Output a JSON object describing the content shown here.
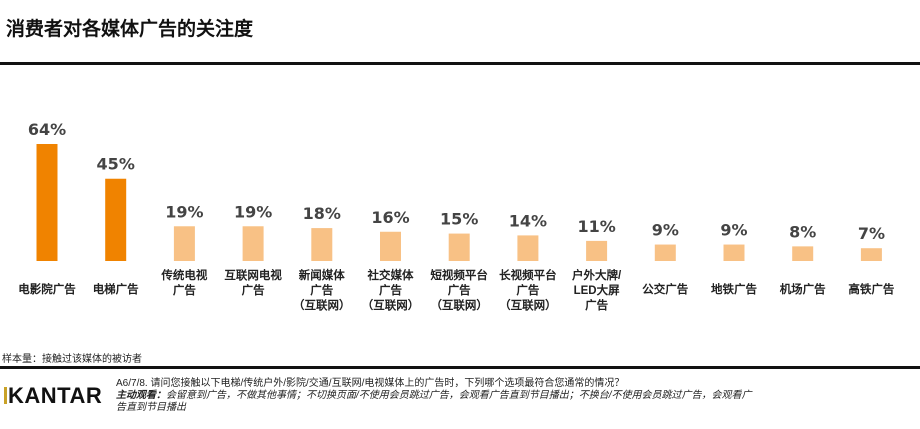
{
  "title": "消费者对各媒体广告的关注度",
  "chart_data": {
    "type": "bar",
    "categories": [
      [
        "电影院广告"
      ],
      [
        "电梯广告"
      ],
      [
        "传统电视",
        "广告"
      ],
      [
        "互联网电视",
        "广告"
      ],
      [
        "新闻媒体",
        "广告",
        "（互联网）"
      ],
      [
        "社交媒体",
        "广告",
        "（互联网）"
      ],
      [
        "短视频平台",
        "广告",
        "（互联网）"
      ],
      [
        "长视频平台",
        "广告",
        "（互联网）"
      ],
      [
        "户外大牌/",
        "LED大屏",
        "广告"
      ],
      [
        "公交广告"
      ],
      [
        "地铁广告"
      ],
      [
        "机场广告"
      ],
      [
        "高铁广告"
      ]
    ],
    "values": [
      64,
      45,
      19,
      19,
      18,
      16,
      15,
      14,
      11,
      9,
      9,
      8,
      7
    ],
    "value_labels": [
      "64%",
      "45%",
      "19%",
      "19%",
      "18%",
      "16%",
      "15%",
      "14%",
      "11%",
      "9%",
      "9%",
      "8%",
      "7%"
    ],
    "highlight_count": 2,
    "colors": {
      "highlight": "#F08300",
      "normal": "#F8C185"
    },
    "ylim": [
      0,
      64
    ],
    "grid": false,
    "unit": "%"
  },
  "footer": {
    "sample": "样本量：接触过该媒体的被访者",
    "logo": "KANTAR",
    "question": "A6/7/8. 请问您接触以下电梯/传统户外/影院/交通/互联网/电视媒体上的广告时，下列哪个选项最符合您通常的情况？",
    "definition_label": "主动观看：",
    "definition_text": "会留意到广告，不做其他事情；不切换页面/不使用会员跳过广告，会观看广告直到节目播出；不换台/不使用会员跳过广告，会观看广告直到节目播出"
  }
}
